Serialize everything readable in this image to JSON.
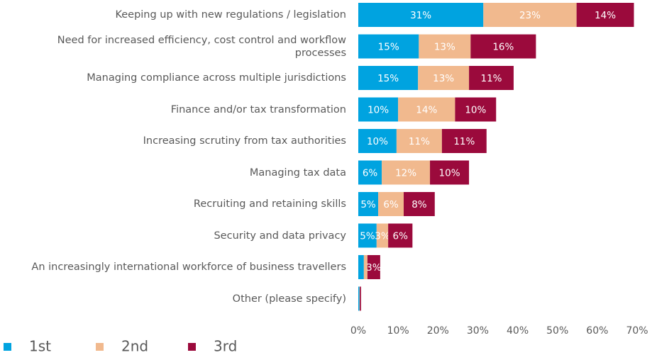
{
  "chart_data": {
    "type": "stacked-barh",
    "categories": [
      "Keeping up with new regulations / legislation",
      "Need for increased efficiency, cost control and workflow processes",
      "Managing compliance across multiple jurisdictions",
      "Finance and/or tax transformation",
      "Increasing scrutiny from tax authorities",
      "Managing tax data",
      "Recruiting and retaining skills",
      "Security and data privacy",
      "An increasingly international workforce of business travellers",
      "Other (please specify)"
    ],
    "series": [
      {
        "name": "1st",
        "color": "#00a3e0",
        "values": [
          31.4,
          15.2,
          15.0,
          10.0,
          9.6,
          5.9,
          5.0,
          4.6,
          1.4,
          0.3
        ],
        "value_labels": [
          "31%",
          "15%",
          "15%",
          "10%",
          "10%",
          "6%",
          "5%",
          "5%",
          null,
          null
        ]
      },
      {
        "name": "2nd",
        "color": "#f1b98e",
        "values": [
          23.4,
          13.0,
          12.8,
          14.3,
          11.4,
          12.1,
          6.4,
          2.9,
          0.9,
          0.1
        ],
        "value_labels": [
          "23%",
          "13%",
          "13%",
          "14%",
          "11%",
          "12%",
          "6%",
          "3%",
          null,
          null
        ]
      },
      {
        "name": "3rd",
        "color": "#9b0a3c",
        "values": [
          14.4,
          16.4,
          11.2,
          10.3,
          11.2,
          9.8,
          7.8,
          6.1,
          3.2,
          0.3
        ],
        "value_labels": [
          "14%",
          "16%",
          "11%",
          "10%",
          "11%",
          "10%",
          "8%",
          "6%",
          "3%",
          null
        ]
      }
    ],
    "xlim": [
      0,
      70
    ],
    "xticks": [
      {
        "value": 0,
        "label": "0%"
      },
      {
        "value": 10,
        "label": "10%"
      },
      {
        "value": 20,
        "label": "20%"
      },
      {
        "value": 30,
        "label": "30%"
      },
      {
        "value": 40,
        "label": "40%"
      },
      {
        "value": 50,
        "label": "50%"
      },
      {
        "value": 60,
        "label": "60%"
      },
      {
        "value": 70,
        "label": "70%"
      }
    ],
    "legend": "bottom-left"
  }
}
